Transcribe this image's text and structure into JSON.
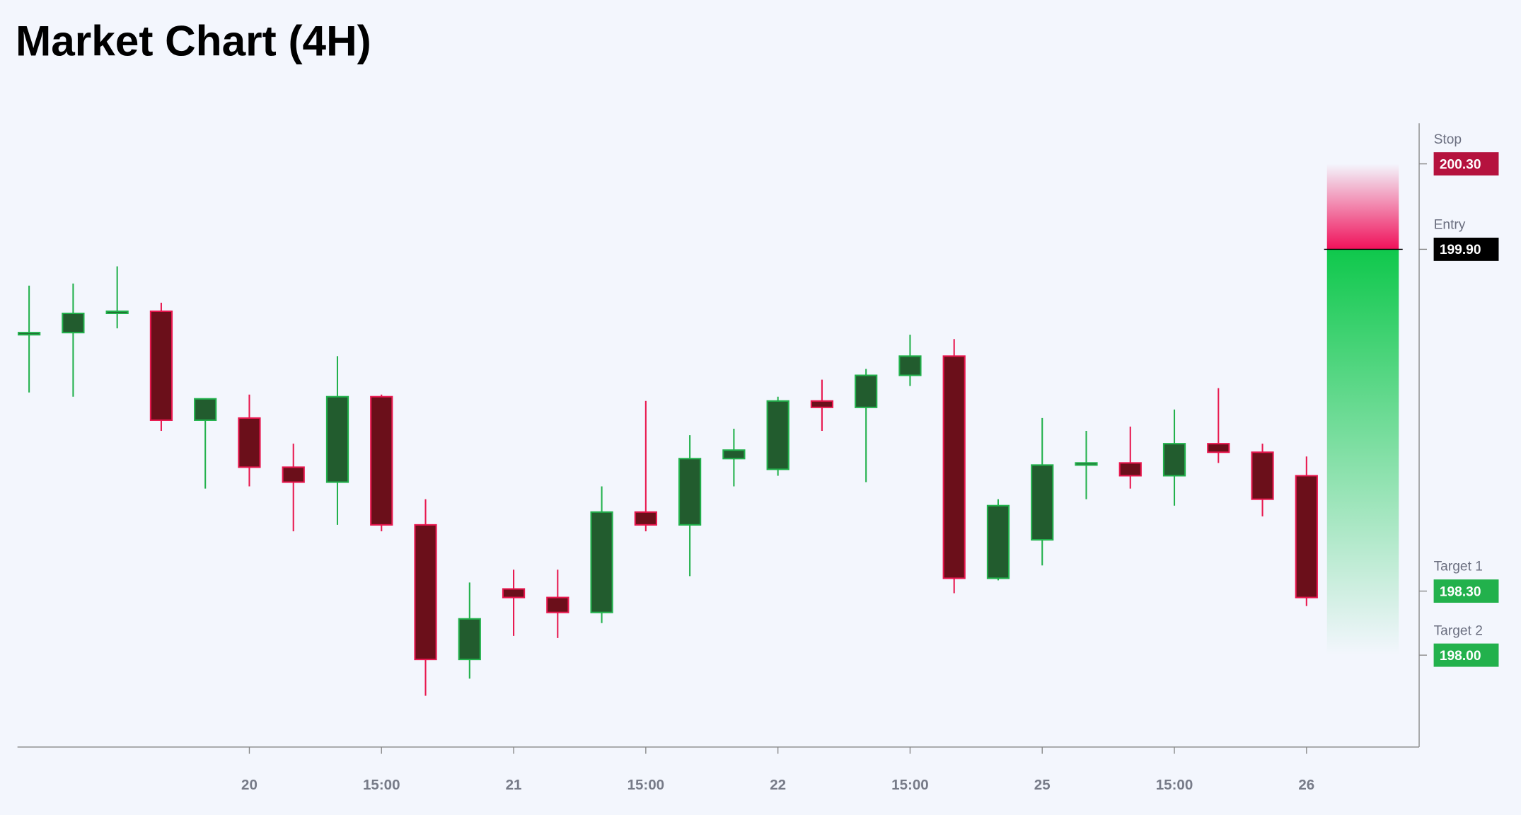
{
  "chart_data": {
    "type": "candlestick",
    "title": "Market Chart (4H)",
    "categories": [
      null,
      null,
      null,
      null,
      null,
      "20",
      null,
      null,
      "15:00",
      null,
      null,
      "21",
      null,
      null,
      "15:00",
      null,
      null,
      "22",
      null,
      null,
      "15:00",
      null,
      null,
      "25",
      null,
      null,
      "15:00",
      null,
      null,
      "26"
    ],
    "open": [
      199.5,
      199.51,
      199.6,
      199.61,
      199.1,
      199.11,
      198.88,
      198.81,
      199.21,
      198.61,
      197.98,
      198.31,
      198.27,
      198.2,
      198.67,
      198.61,
      198.92,
      198.87,
      199.19,
      199.16,
      199.31,
      199.4,
      198.36,
      198.54,
      198.89,
      198.9,
      198.84,
      198.99,
      198.95,
      198.84
    ],
    "high": [
      199.73,
      199.74,
      199.82,
      199.65,
      199.2,
      199.22,
      198.99,
      199.4,
      199.22,
      198.73,
      198.34,
      198.4,
      198.4,
      198.79,
      199.19,
      199.03,
      199.06,
      199.21,
      199.29,
      199.34,
      199.5,
      199.48,
      198.73,
      199.11,
      199.05,
      199.07,
      199.15,
      199.25,
      198.99,
      198.93
    ],
    "low": [
      199.23,
      199.21,
      199.53,
      199.05,
      198.78,
      198.79,
      198.58,
      198.61,
      198.58,
      197.81,
      197.89,
      198.09,
      198.08,
      198.15,
      198.58,
      198.37,
      198.79,
      198.84,
      199.05,
      198.81,
      199.26,
      198.29,
      198.35,
      198.42,
      198.73,
      198.78,
      198.7,
      198.9,
      198.65,
      198.23
    ],
    "close": [
      199.51,
      199.6,
      199.61,
      199.1,
      199.2,
      198.88,
      198.81,
      199.21,
      198.61,
      197.98,
      198.17,
      198.27,
      198.2,
      198.67,
      198.61,
      198.92,
      198.96,
      199.19,
      199.16,
      199.31,
      199.4,
      198.36,
      198.7,
      198.89,
      198.9,
      198.84,
      198.99,
      198.95,
      198.73,
      198.27
    ],
    "up_color": "#22b14c",
    "up_fill": "#225c2e",
    "down_color": "#e8174e",
    "down_fill": "#6b0f1a",
    "ylim": [
      197.57,
      200.49
    ],
    "levels": [
      {
        "name": "Stop",
        "value": 200.3,
        "label": "200.30",
        "color": "#b5123e"
      },
      {
        "name": "Entry",
        "value": 199.9,
        "label": "199.90",
        "color": "#000000"
      },
      {
        "name": "Target 1",
        "value": 198.3,
        "label": "198.30",
        "color": "#22b14c"
      },
      {
        "name": "Target 2",
        "value": 198.0,
        "label": "198.00",
        "color": "#22b14c"
      }
    ]
  }
}
